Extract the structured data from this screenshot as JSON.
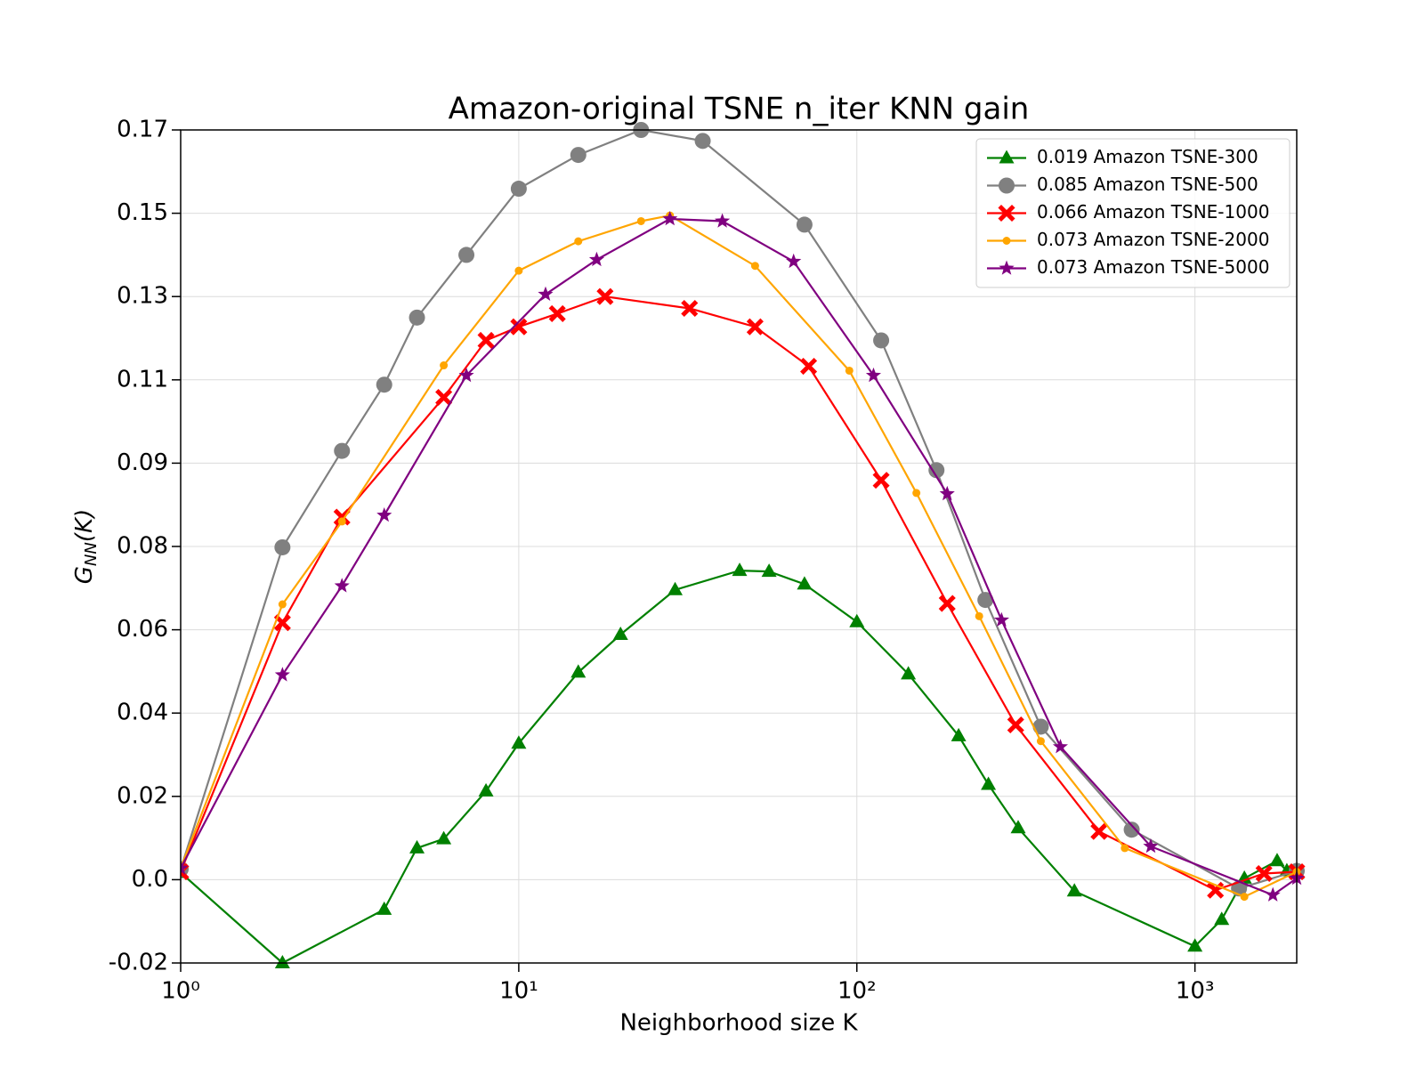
{
  "chart_data": {
    "type": "line",
    "title": "Amazon-original TSNE n_iter KNN gain",
    "x_label": "Neighborhood size K",
    "y_label": {
      "main": "G",
      "sub": "NN",
      "rest": "(K)"
    },
    "x_scale": "log",
    "grid": true,
    "legend": "upper right",
    "xlim": [
      1,
      2000
    ],
    "xticks": [
      {
        "value": 1,
        "label": "10⁰"
      },
      {
        "value": 10,
        "label": "10¹"
      },
      {
        "value": 100,
        "label": "10²"
      },
      {
        "value": 1000,
        "label": "10³"
      }
    ],
    "ylim": [
      -0.02,
      0.17
    ],
    "yticks": [
      {
        "value": -0.02,
        "label": "-0.02"
      },
      {
        "value": -0.001,
        "label": "0.0"
      },
      {
        "value": 0.018,
        "label": "0.02"
      },
      {
        "value": 0.037,
        "label": "0.04"
      },
      {
        "value": 0.056,
        "label": "0.06"
      },
      {
        "value": 0.075,
        "label": "0.08"
      },
      {
        "value": 0.094,
        "label": "0.09"
      },
      {
        "value": 0.113,
        "label": "0.11"
      },
      {
        "value": 0.132,
        "label": "0.13"
      },
      {
        "value": 0.151,
        "label": "0.15"
      },
      {
        "value": 0.17,
        "label": "0.17"
      }
    ],
    "series": [
      {
        "name": "0.019 Amazon TSNE-300",
        "color": "#008000",
        "marker": "triangle",
        "x": [
          1,
          2,
          4,
          5,
          6,
          8,
          10,
          15,
          20,
          29,
          45,
          55,
          70,
          100,
          142,
          200,
          245,
          300,
          440,
          1000,
          1200,
          1400,
          1750,
          1870,
          2000
        ],
        "values": [
          0.0006,
          -0.02,
          -0.0078,
          0.0062,
          0.0083,
          0.0192,
          0.0301,
          0.0463,
          0.0549,
          0.0651,
          0.0695,
          0.0693,
          0.0664,
          0.0578,
          0.0459,
          0.0318,
          0.0207,
          0.0108,
          -0.0036,
          -0.0162,
          -0.0101,
          -0.0007,
          0.0033,
          0.001,
          0.0004
        ]
      },
      {
        "name": "0.085 Amazon TSNE-500",
        "color": "#808080",
        "marker": "circle",
        "x": [
          1,
          2,
          3,
          4,
          5,
          7,
          10,
          15,
          23,
          35,
          70,
          118,
          172,
          240,
          350,
          650,
          1350,
          2000
        ],
        "values": [
          0.0014,
          0.0748,
          0.0968,
          0.1119,
          0.1272,
          0.1415,
          0.1566,
          0.1643,
          0.17,
          0.1675,
          0.1484,
          0.122,
          0.0924,
          0.0628,
          0.0339,
          0.0104,
          -0.003,
          0.001
        ]
      },
      {
        "name": "0.066 Amazon TSNE-1000",
        "color": "#ff0000",
        "marker": "x",
        "x": [
          1,
          2,
          3,
          6,
          8,
          10,
          13,
          18,
          32,
          50,
          72,
          118,
          185,
          295,
          520,
          1150,
          1600,
          2000
        ],
        "values": [
          0.0008,
          0.0576,
          0.0817,
          0.109,
          0.122,
          0.1251,
          0.1281,
          0.132,
          0.1293,
          0.1251,
          0.1161,
          0.0901,
          0.062,
          0.0343,
          0.01,
          -0.0034,
          0.0004,
          0.0008
        ]
      },
      {
        "name": "0.073 Amazon TSNE-2000",
        "color": "#ffa500",
        "marker": "dot",
        "x": [
          1,
          2,
          3,
          6,
          10,
          15,
          23,
          28,
          50,
          95,
          150,
          230,
          350,
          620,
          1400,
          2000
        ],
        "values": [
          0.0016,
          0.0618,
          0.0807,
          0.1163,
          0.1379,
          0.1446,
          0.1492,
          0.1505,
          0.139,
          0.1151,
          0.0872,
          0.0591,
          0.0306,
          0.0062,
          -0.0049,
          0.0008
        ]
      },
      {
        "name": "0.073 Amazon TSNE-5000",
        "color": "#800080",
        "marker": "star",
        "x": [
          1,
          2,
          3,
          4,
          7,
          12,
          17,
          28,
          40,
          65,
          112,
          185,
          268,
          400,
          740,
          1700,
          2000
        ],
        "values": [
          0.0016,
          0.0457,
          0.066,
          0.0821,
          0.114,
          0.1325,
          0.1404,
          0.1497,
          0.1492,
          0.14,
          0.114,
          0.087,
          0.0582,
          0.0293,
          0.0066,
          -0.0045,
          -0.0007
        ]
      }
    ]
  }
}
